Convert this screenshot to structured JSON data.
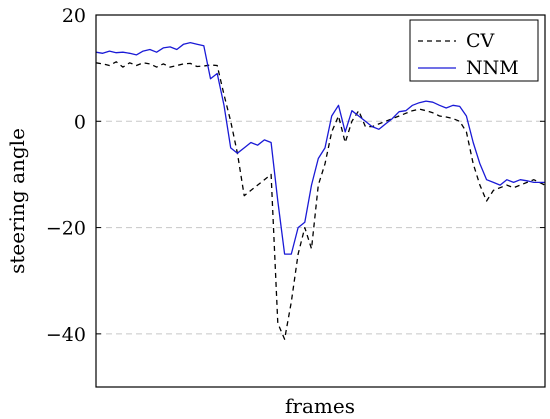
{
  "chart_data": {
    "type": "line",
    "xlabel": "frames",
    "ylabel": "steering angle",
    "ylim": [
      -50,
      20
    ],
    "y_ticks": [
      -40,
      -20,
      0,
      20
    ],
    "y_tick_labels": [
      "−40",
      "−20",
      "0",
      "20"
    ],
    "x_ticks": [],
    "x_range": [
      0,
      100
    ],
    "grid": {
      "horizontal_dashed": [
        -40,
        -20,
        0
      ]
    },
    "legend_position": "top-right",
    "series": [
      {
        "name": "CV",
        "style": "dashed",
        "color": "#000000",
        "x": [
          0,
          1.5,
          3,
          4.5,
          6,
          7.5,
          9,
          10.5,
          12,
          13.5,
          15,
          16.5,
          18,
          19.5,
          21,
          22.5,
          24,
          25.5,
          27,
          28.5,
          30,
          31.5,
          33,
          34.5,
          36,
          37.5,
          39,
          40.5,
          42,
          43.5,
          45,
          46.5,
          48,
          49.5,
          51,
          52.5,
          54,
          55.5,
          57,
          58.5,
          60,
          61.5,
          63,
          64.5,
          66,
          67.5,
          69,
          70.5,
          72,
          73.5,
          75,
          76.5,
          78,
          79.5,
          81,
          82.5,
          84,
          85.5,
          87,
          88.5,
          90,
          91.5,
          93,
          94.5,
          96,
          97.5,
          100
        ],
        "y": [
          11,
          10.8,
          10.5,
          11.2,
          10.2,
          11,
          10.5,
          11,
          10.8,
          10.2,
          10.8,
          10.2,
          10.5,
          10.8,
          10.9,
          10.3,
          10.4,
          10.6,
          10.5,
          5,
          0,
          -6,
          -14,
          -13,
          -12,
          -11,
          -10,
          -38,
          -41,
          -34,
          -25,
          -20,
          -24,
          -12,
          -8,
          -2,
          1,
          -4,
          0,
          2,
          -1,
          -1,
          -0.5,
          0,
          0.5,
          1,
          1.5,
          2,
          2.3,
          2,
          1.6,
          1,
          0.8,
          0.5,
          0,
          -2,
          -8,
          -12,
          -15,
          -13,
          -12.5,
          -12,
          -12.5,
          -12,
          -11.5,
          -11,
          -12
        ]
      },
      {
        "name": "NNM",
        "style": "solid",
        "color": "#1a1ad6",
        "x": [
          0,
          1.5,
          3,
          4.5,
          6,
          7.5,
          9,
          10.5,
          12,
          13.5,
          15,
          16.5,
          18,
          19.5,
          21,
          22.5,
          24,
          25.5,
          27,
          28.5,
          30,
          31.5,
          33,
          34.5,
          36,
          37.5,
          39,
          40.5,
          42,
          43.5,
          45,
          46.5,
          48,
          49.5,
          51,
          52.5,
          54,
          55.5,
          57,
          58.5,
          60,
          61.5,
          63,
          64.5,
          66,
          67.5,
          69,
          70.5,
          72,
          73.5,
          75,
          76.5,
          78,
          79.5,
          81,
          82.5,
          84,
          85.5,
          87,
          88.5,
          90,
          91.5,
          93,
          94.5,
          96,
          97.5,
          100
        ],
        "y": [
          13,
          12.8,
          13.2,
          12.9,
          13,
          12.8,
          12.5,
          13.2,
          13.5,
          13,
          13.8,
          14,
          13.5,
          14.5,
          14.8,
          14.5,
          14.2,
          8,
          9,
          3,
          -5,
          -6,
          -5,
          -4,
          -4.5,
          -3.5,
          -4,
          -15,
          -25,
          -25,
          -20,
          -19,
          -12,
          -7,
          -5,
          1,
          3,
          -2,
          2,
          1,
          0,
          -1,
          -1.5,
          -0.5,
          0.5,
          1.8,
          2,
          3,
          3.5,
          3.8,
          3.6,
          3,
          2.5,
          3,
          2.8,
          1,
          -4,
          -8,
          -11,
          -11.5,
          -12,
          -11,
          -11.5,
          -11,
          -11.2,
          -11.5,
          -11.5
        ]
      }
    ]
  }
}
